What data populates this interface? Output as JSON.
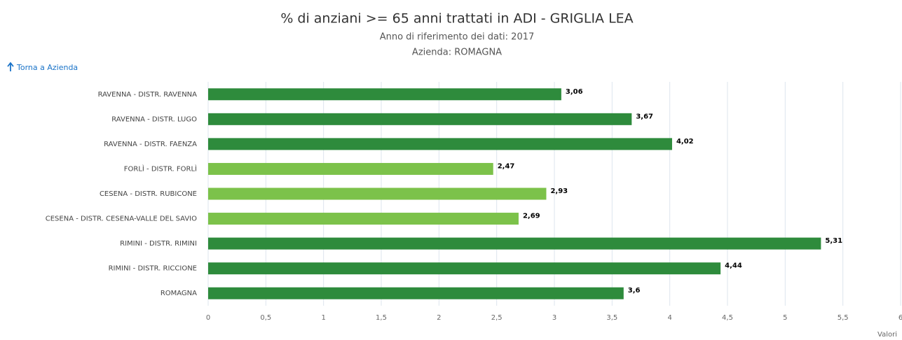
{
  "nav_link": "Torna a Azienda",
  "chart_data": {
    "type": "bar",
    "orientation": "horizontal",
    "title": "% di anziani >= 65 anni trattati in ADI - GRIGLIA LEA",
    "subtitle": [
      "Anno di riferimento dei dati: 2017",
      "Azienda: ROMAGNA"
    ],
    "x_label": "Valori",
    "categories": [
      "RAVENNA - DISTR. RAVENNA",
      "RAVENNA - DISTR. LUGO",
      "RAVENNA - DISTR. FAENZA",
      "FORLÌ - DISTR. FORLÌ",
      "CESENA - DISTR. RUBICONE",
      "CESENA - DISTR. CESENA-VALLE DEL SAVIO",
      "RIMINI - DISTR. RIMINI",
      "RIMINI - DISTR. RICCIONE",
      "ROMAGNA"
    ],
    "values": [
      3.06,
      3.67,
      4.02,
      2.47,
      2.93,
      2.69,
      5.31,
      4.44,
      3.6
    ],
    "value_labels": [
      "3,06",
      "3,67",
      "4,02",
      "2,47",
      "2,93",
      "2,69",
      "5,31",
      "4,44",
      "3,6"
    ],
    "colors": [
      "#2e8b3c",
      "#2e8b3c",
      "#2e8b3c",
      "#7cc24a",
      "#7cc24a",
      "#7cc24a",
      "#2e8b3c",
      "#2e8b3c",
      "#2e8b3c"
    ],
    "xlim": [
      0,
      6
    ],
    "xticks": [
      0,
      {
        "value": 0.5,
        "label": "0,5"
      },
      1,
      {
        "value": 1.5,
        "label": "1,5"
      },
      2,
      {
        "value": 2.5,
        "label": "2,5"
      },
      3,
      {
        "value": 3.5,
        "label": "3,5"
      },
      4,
      {
        "value": 4.5,
        "label": "4,5"
      },
      5,
      {
        "value": 5.5,
        "label": "5,5"
      },
      6
    ],
    "grid": true
  }
}
